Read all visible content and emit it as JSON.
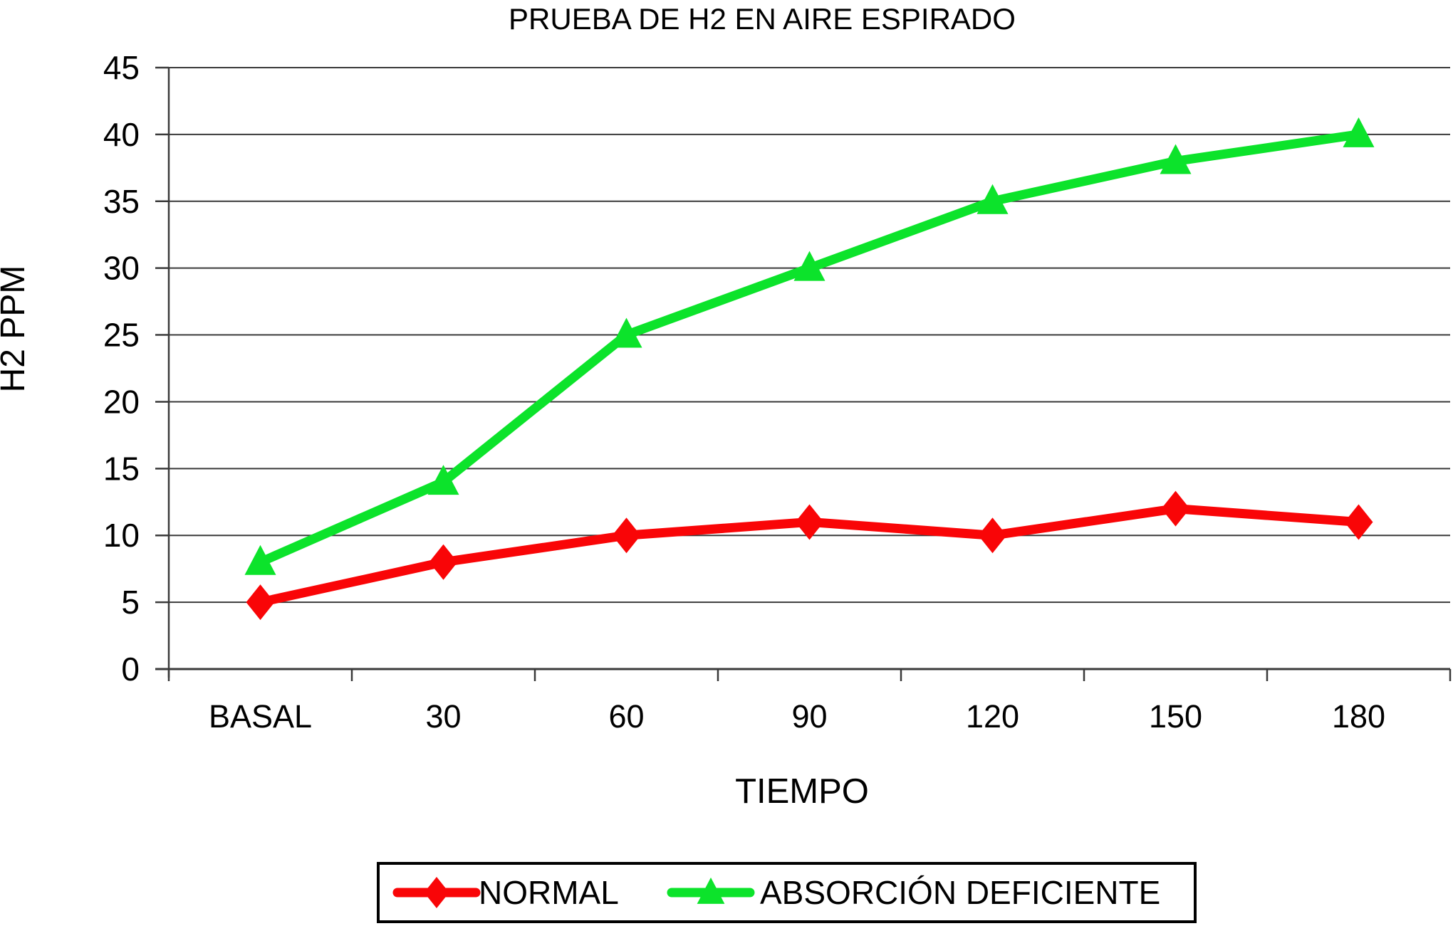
{
  "page": {
    "background": "#ffffff"
  },
  "chart_data": {
    "type": "line",
    "title": "PRUEBA DE H2 EN AIRE ESPIRADO",
    "xlabel": "TIEMPO",
    "ylabel": "H2 PPM",
    "categories": [
      "BASAL",
      "30",
      "60",
      "90",
      "120",
      "150",
      "180"
    ],
    "series": [
      {
        "name": "NORMAL",
        "color": "#F90507",
        "marker": "diamond",
        "values": [
          5,
          8,
          10,
          11,
          10,
          12,
          11
        ]
      },
      {
        "name": "ABSORCIÓN DEFICIENTE",
        "color": "#0CE32B",
        "marker": "triangle",
        "values": [
          8,
          14,
          25,
          30,
          35,
          38,
          40
        ]
      }
    ],
    "ylim": [
      0,
      45
    ],
    "ytick_step": 5,
    "ytick_labels": [
      "0",
      "5",
      "10",
      "15",
      "20",
      "25",
      "30",
      "35",
      "40",
      "45"
    ],
    "grid": true,
    "gridline_color": "#3a3a3a",
    "axis_color": "#3a3a3a",
    "legend_position": "bottom",
    "legend_border_color": "#000000"
  }
}
